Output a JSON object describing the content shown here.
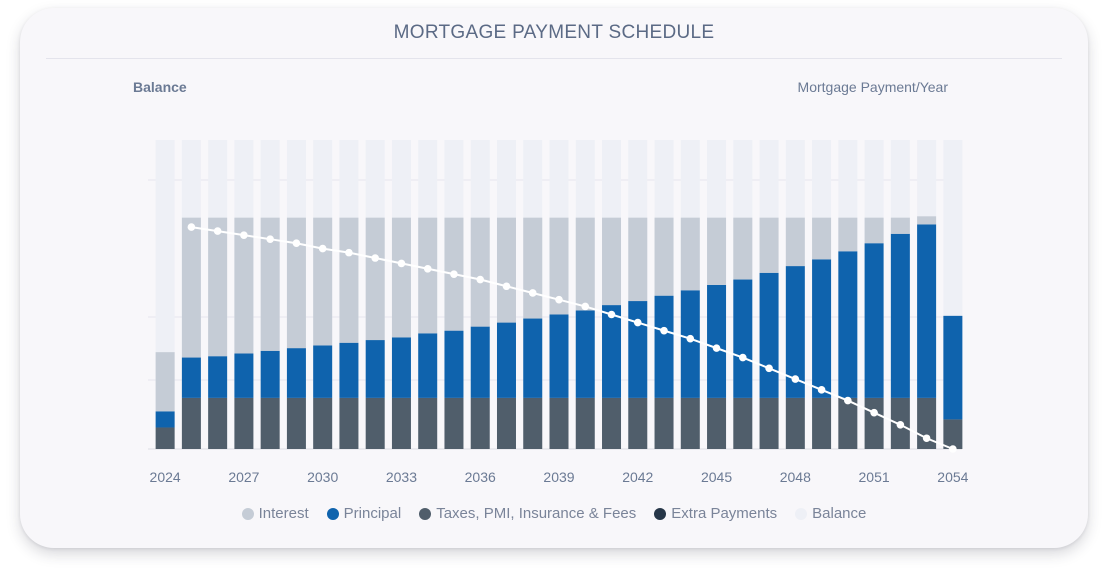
{
  "title": "MORTGAGE PAYMENT SCHEDULE",
  "left_axis_label": "Balance",
  "right_axis_label": "Mortgage Payment/Year",
  "colors": {
    "interest": "#c5ccd6",
    "principal": "#0f63ad",
    "taxes": "#505e6b",
    "extra": "#263648",
    "balance": "#eef0f6",
    "balance_line": "#ffffff"
  },
  "legend": [
    {
      "label": "Interest",
      "color": "#c5ccd6"
    },
    {
      "label": "Principal",
      "color": "#0f63ad"
    },
    {
      "label": "Taxes, PMI, Insurance & Fees",
      "color": "#505e6b"
    },
    {
      "label": "Extra Payments",
      "color": "#263648"
    },
    {
      "label": "Balance",
      "color": "#eef0f6"
    }
  ],
  "chart_data": {
    "type": "bar",
    "stacked": true,
    "x_ticks": [
      "2024",
      "2027",
      "2030",
      "2033",
      "2036",
      "2039",
      "2042",
      "2045",
      "2048",
      "2051",
      "2054"
    ],
    "categories": [
      "2024",
      "2025",
      "2026",
      "2027",
      "2028",
      "2029",
      "2030",
      "2031",
      "2032",
      "2033",
      "2034",
      "2035",
      "2036",
      "2037",
      "2038",
      "2039",
      "2040",
      "2041",
      "2042",
      "2043",
      "2044",
      "2045",
      "2046",
      "2047",
      "2048",
      "2049",
      "2050",
      "2051",
      "2052",
      "2053",
      "2054"
    ],
    "series": [
      {
        "name": "Taxes, PMI, Insurance & Fees",
        "values": [
          0.08,
          0.19,
          0.19,
          0.19,
          0.19,
          0.19,
          0.19,
          0.19,
          0.19,
          0.19,
          0.19,
          0.19,
          0.19,
          0.19,
          0.19,
          0.19,
          0.19,
          0.19,
          0.19,
          0.19,
          0.19,
          0.19,
          0.19,
          0.19,
          0.19,
          0.19,
          0.19,
          0.19,
          0.19,
          0.19,
          0.11
        ]
      },
      {
        "name": "Principal",
        "values": [
          0.06,
          0.15,
          0.155,
          0.165,
          0.175,
          0.185,
          0.195,
          0.205,
          0.215,
          0.225,
          0.24,
          0.25,
          0.265,
          0.28,
          0.295,
          0.31,
          0.325,
          0.345,
          0.36,
          0.38,
          0.4,
          0.42,
          0.44,
          0.465,
          0.49,
          0.515,
          0.545,
          0.575,
          0.61,
          0.645,
          0.385
        ]
      },
      {
        "name": "Interest",
        "values": [
          0.22,
          0.52,
          0.515,
          0.505,
          0.495,
          0.485,
          0.475,
          0.465,
          0.455,
          0.445,
          0.43,
          0.42,
          0.405,
          0.39,
          0.375,
          0.36,
          0.345,
          0.325,
          0.31,
          0.29,
          0.27,
          0.25,
          0.23,
          0.205,
          0.18,
          0.155,
          0.125,
          0.095,
          0.06,
          0.03,
          0.0
        ]
      },
      {
        "name": "Extra Payments",
        "values": [
          0,
          0,
          0,
          0,
          0,
          0,
          0,
          0,
          0,
          0,
          0,
          0,
          0,
          0,
          0,
          0,
          0,
          0,
          0,
          0,
          0,
          0,
          0,
          0,
          0,
          0,
          0,
          0,
          0,
          0,
          0
        ]
      }
    ],
    "balance_fill": [
      1.0,
      1.0,
      1.0,
      1.0,
      1.0,
      1.0,
      1.0,
      1.0,
      1.0,
      1.0,
      1.0,
      1.0,
      1.0,
      1.0,
      1.0,
      1.0,
      1.0,
      1.0,
      1.0,
      1.0,
      1.0,
      1.0,
      1.0,
      1.0,
      1.0,
      1.0,
      1.0,
      1.0,
      1.0,
      1.0,
      1.0
    ],
    "balance_line": [
      null,
      0.825,
      0.81,
      0.795,
      0.78,
      0.765,
      0.745,
      0.73,
      0.71,
      0.69,
      0.67,
      0.65,
      0.63,
      0.605,
      0.58,
      0.555,
      0.53,
      0.5,
      0.47,
      0.44,
      0.41,
      0.375,
      0.34,
      0.3,
      0.26,
      0.22,
      0.18,
      0.135,
      0.09,
      0.04,
      0.0
    ],
    "grid": true
  }
}
